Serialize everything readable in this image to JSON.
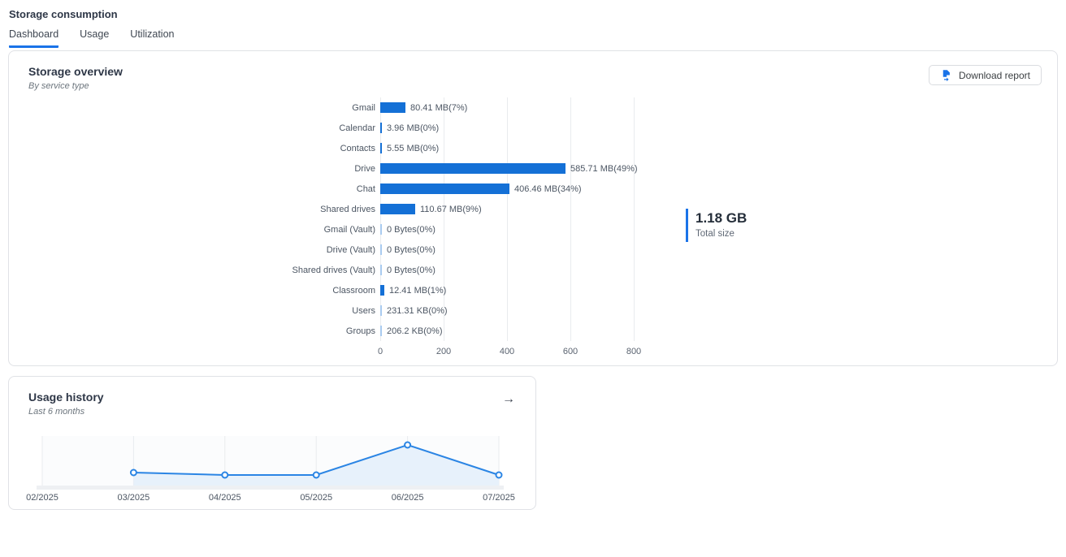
{
  "page": {
    "title": "Storage consumption"
  },
  "tabs": [
    {
      "label": "Dashboard",
      "active": true
    },
    {
      "label": "Usage",
      "active": false
    },
    {
      "label": "Utilization",
      "active": false
    }
  ],
  "storage_overview": {
    "title": "Storage overview",
    "subtitle": "By service type",
    "download_button_label": "Download report",
    "total_size": {
      "value": "1.18 GB",
      "caption": "Total size"
    }
  },
  "usage_history": {
    "title": "Usage history",
    "subtitle": "Last 6 months",
    "open_arrow": "→"
  },
  "colors": {
    "accent_blue": "#1a73e8",
    "bar_blue": "#1470d6",
    "bar_zero_tick": "#a9cbf0",
    "line_blue": "#2b85e4",
    "line_area_fill": "#e7f1fb",
    "gridline": "#e9ebee",
    "axis_band": "#eef0f3"
  },
  "chart_data": [
    {
      "type": "bar",
      "orientation": "horizontal",
      "title": "Storage overview",
      "subtitle": "By service type",
      "categories": [
        "Gmail",
        "Calendar",
        "Contacts",
        "Drive",
        "Chat",
        "Shared drives",
        "Gmail (Vault)",
        "Drive (Vault)",
        "Shared drives (Vault)",
        "Classroom",
        "Users",
        "Groups"
      ],
      "values_mb": [
        80.41,
        3.96,
        5.55,
        585.71,
        406.46,
        110.67,
        0,
        0,
        0,
        12.41,
        0.2259,
        0.2014
      ],
      "value_labels": [
        "80.41 MB(7%)",
        "3.96 MB(0%)",
        "5.55 MB(0%)",
        "585.71 MB(49%)",
        "406.46 MB(34%)",
        "110.67 MB(9%)",
        "0 Bytes(0%)",
        "0 Bytes(0%)",
        "0 Bytes(0%)",
        "12.41 MB(1%)",
        "231.31 KB(0%)",
        "206.2 KB(0%)"
      ],
      "percentages": [
        7,
        0,
        0,
        49,
        34,
        9,
        0,
        0,
        0,
        1,
        0,
        0
      ],
      "x_ticks": [
        0,
        200,
        400,
        600,
        800
      ],
      "xlim": [
        0,
        800
      ],
      "unit": "MB",
      "grid": true,
      "legend": false,
      "total": {
        "value": "1.18 GB",
        "label": "Total size"
      }
    },
    {
      "type": "line",
      "title": "Usage history",
      "subtitle": "Last 6 months",
      "x": [
        "02/2025",
        "03/2025",
        "04/2025",
        "05/2025",
        "06/2025",
        "07/2025"
      ],
      "values_relative": [
        null,
        26,
        21,
        21,
        82,
        21
      ],
      "ylim": [
        0,
        100
      ],
      "y_axis_shown": false,
      "grid": true,
      "area_fill": true,
      "markers": "open-circle",
      "legend": false
    }
  ]
}
